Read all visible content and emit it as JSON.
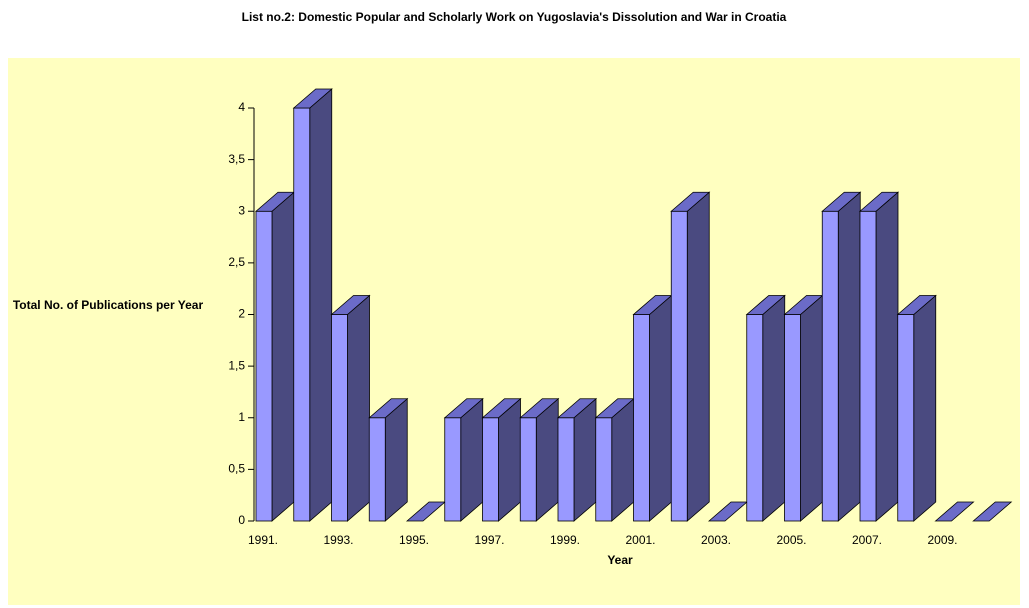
{
  "chart_data": {
    "type": "bar3d",
    "title": "List no.2: Domestic Popular and Scholarly Work on Yugoslavia's Dissolution and War in Croatia",
    "x_label": "Year",
    "y_label": "Total No. of Publications per Year",
    "categories": [
      "1991.",
      null,
      "1993.",
      null,
      "1995.",
      null,
      "1997.",
      null,
      "1999.",
      null,
      "2001.",
      null,
      "2003.",
      null,
      "2005.",
      null,
      "2007.",
      null,
      "2009.",
      null
    ],
    "values": [
      3,
      4,
      2,
      1,
      0,
      1,
      1,
      1,
      1,
      1,
      2,
      3,
      0,
      2,
      2,
      3,
      3,
      2,
      0,
      0
    ],
    "color": "#9999ff",
    "ylim": [
      0,
      4
    ],
    "yticks": [
      0,
      {
        "value": 0.5,
        "label": "0,5"
      },
      1,
      {
        "value": 1.5,
        "label": "1,5"
      },
      2,
      {
        "value": 2.5,
        "label": "2,5"
      },
      3,
      {
        "value": 3.5,
        "label": "3,5"
      },
      4
    ]
  }
}
